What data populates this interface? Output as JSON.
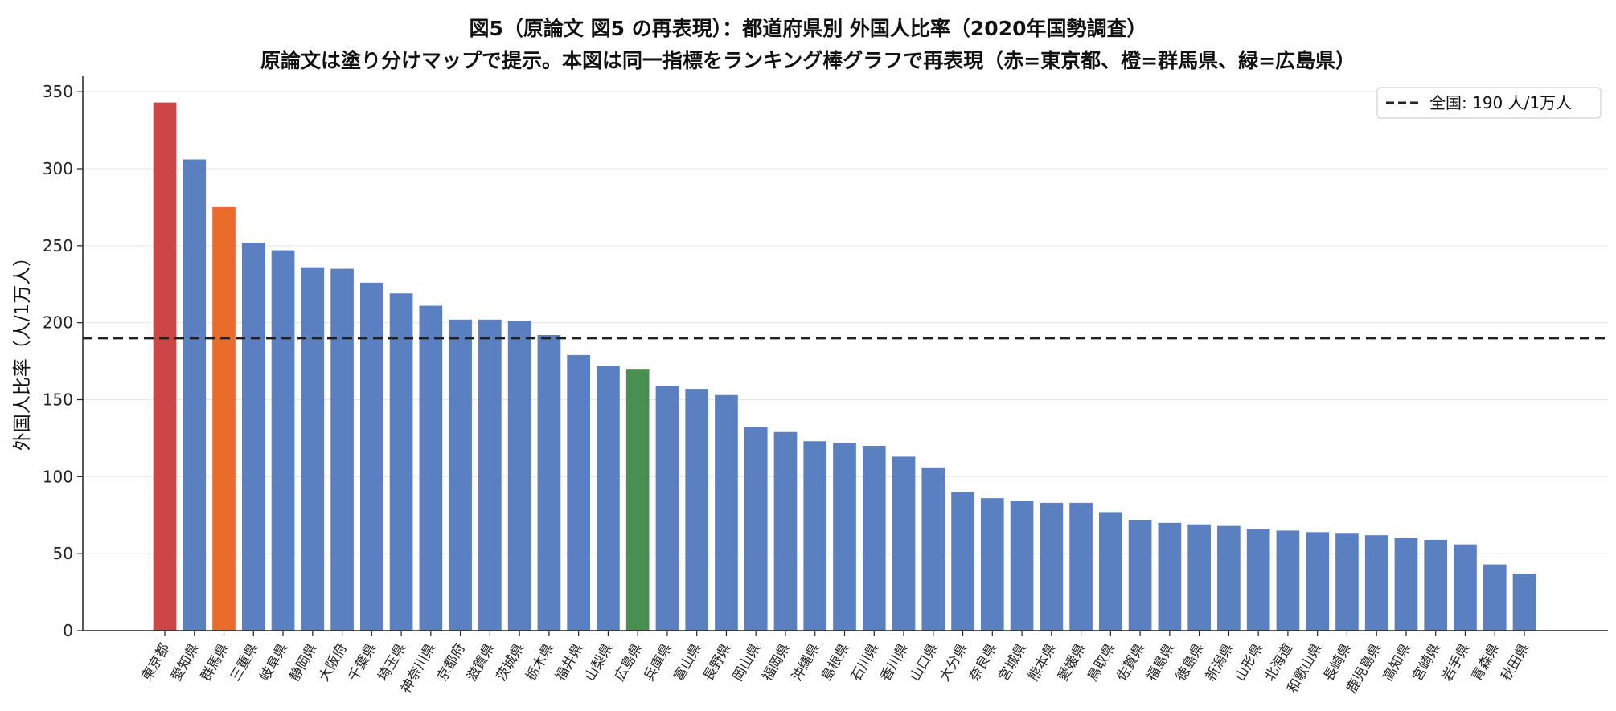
{
  "title": "図5（原論文 図5 の再表現）：都道府県別 外国人比率（2020年国勢調査）",
  "subtitle": "原論文は塗り分けマップで提示。本図は同一指標をランキング棒グラフで再表現（赤=東京都、橙=群馬県、緑=広島県）",
  "chart_data": {
    "type": "bar",
    "title": "図5（原論文 図5 の再表現）：都道府県別 外国人比率（2020年国勢調査）",
    "subtitle": "原論文は塗り分けマップで提示。本図は同一指標をランキング棒グラフで再表現（赤=東京都、橙=群馬県、緑=広島県）",
    "xlabel": "",
    "ylabel": "外国人比率（人/1万人）",
    "ylim": [
      0,
      360
    ],
    "yticks": [
      0,
      50,
      100,
      150,
      200,
      250,
      300,
      350
    ],
    "grid": "y",
    "legend_position": "top-right",
    "reference_line": {
      "value": 190,
      "label": "全国: 190 人/1万人",
      "style": "dashed",
      "color": "#222222"
    },
    "categories": [
      "東京都",
      "愛知県",
      "群馬県",
      "三重県",
      "岐阜県",
      "静岡県",
      "大阪府",
      "千葉県",
      "埼玉県",
      "神奈川県",
      "京都府",
      "滋賀県",
      "茨城県",
      "栃木県",
      "福井県",
      "山梨県",
      "広島県",
      "兵庫県",
      "富山県",
      "長野県",
      "岡山県",
      "福岡県",
      "沖縄県",
      "島根県",
      "石川県",
      "香川県",
      "山口県",
      "大分県",
      "奈良県",
      "宮城県",
      "熊本県",
      "愛媛県",
      "鳥取県",
      "佐賀県",
      "福島県",
      "徳島県",
      "新潟県",
      "山形県",
      "北海道",
      "和歌山県",
      "長崎県",
      "鹿児島県",
      "高知県",
      "宮崎県",
      "岩手県",
      "青森県",
      "秋田県"
    ],
    "values": [
      343,
      306,
      275,
      252,
      247,
      236,
      235,
      226,
      219,
      211,
      202,
      202,
      201,
      192,
      179,
      172,
      170,
      159,
      157,
      153,
      132,
      129,
      123,
      122,
      120,
      113,
      106,
      90,
      86,
      84,
      83,
      83,
      77,
      72,
      70,
      69,
      68,
      66,
      65,
      64,
      63,
      62,
      60,
      59,
      56,
      43,
      37
    ],
    "colors": {
      "default": "#5b80c2",
      "東京都": "#cc4646",
      "群馬県": "#ea6c2a",
      "広島県": "#4a8f52"
    }
  }
}
